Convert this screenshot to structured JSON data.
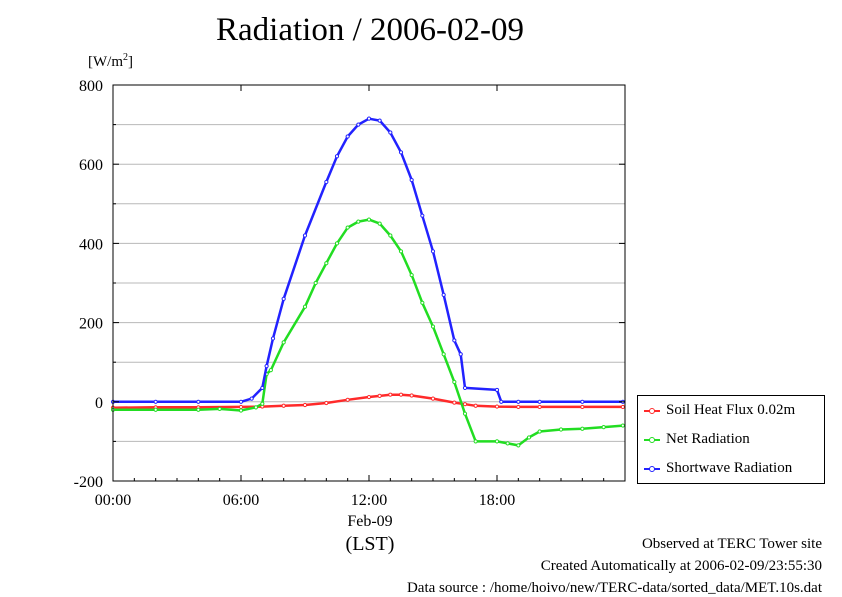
{
  "title": "Radiation / 2006-02-09",
  "unit_label": "[W/m",
  "unit_sup": "2",
  "unit_close": "]",
  "x_date_label": "Feb-09",
  "x_axis_label": "(LST)",
  "footer": {
    "line1": "Observed at TERC Tower site",
    "line2": "Created Automatically at 2006-02-09/23:55:30",
    "line3": "Data source : /home/hoivo/new/TERC-data/sorted_data/MET.10s.dat"
  },
  "legend": [
    {
      "label": "Soil Heat Flux 0.02m",
      "color": "#ff2a2a"
    },
    {
      "label": "Net Radiation",
      "color": "#22dd22"
    },
    {
      "label": "Shortwave Radiation",
      "color": "#2222ff"
    }
  ],
  "chart_data": {
    "type": "line",
    "title": "Radiation / 2006-02-09",
    "ylabel": "[W/m2]",
    "xlabel": "(LST)",
    "xlim": [
      0,
      24
    ],
    "ylim": [
      -200,
      800
    ],
    "x_ticks": [
      0,
      6,
      12,
      18
    ],
    "x_tick_labels": [
      "00:00",
      "06:00",
      "12:00",
      "18:00"
    ],
    "y_ticks": [
      -200,
      0,
      200,
      400,
      600,
      800
    ],
    "y_tick_labels": [
      "-200",
      "0",
      "200",
      "400",
      "600",
      "800"
    ],
    "grid": "horizontal",
    "legend_position": "right",
    "series": [
      {
        "name": "Soil Heat Flux 0.02m",
        "color": "#ff2a2a",
        "x": [
          0,
          2,
          4,
          6,
          7,
          8,
          9,
          10,
          11,
          12,
          12.5,
          13,
          13.5,
          14,
          15,
          16,
          16.5,
          17,
          18,
          19,
          20,
          22,
          23.9
        ],
        "y": [
          -15,
          -14,
          -14,
          -13,
          -12,
          -10,
          -8,
          -3,
          5,
          12,
          15,
          18,
          18,
          16,
          8,
          -2,
          -6,
          -10,
          -12,
          -13,
          -13,
          -13,
          -13
        ]
      },
      {
        "name": "Net Radiation",
        "color": "#22dd22",
        "x": [
          0,
          2,
          4,
          5,
          6,
          6.7,
          7,
          7.2,
          7.4,
          8,
          9,
          9.5,
          10,
          10.5,
          11,
          11.5,
          12,
          12.5,
          13,
          13.5,
          14,
          14.5,
          15,
          15.5,
          16,
          16.5,
          17,
          18,
          18.5,
          19,
          19.5,
          20,
          21,
          22,
          23,
          23.9
        ],
        "y": [
          -20,
          -20,
          -20,
          -18,
          -22,
          -14,
          -5,
          70,
          80,
          150,
          240,
          300,
          350,
          400,
          440,
          455,
          460,
          450,
          420,
          380,
          320,
          250,
          190,
          120,
          50,
          -30,
          -100,
          -100,
          -105,
          -110,
          -90,
          -75,
          -70,
          -68,
          -64,
          -60
        ]
      },
      {
        "name": "Shortwave Radiation",
        "color": "#2222ff",
        "x": [
          0,
          2,
          4,
          6,
          6.5,
          7,
          7.2,
          7.5,
          8,
          9,
          10,
          10.5,
          11,
          11.5,
          12,
          12.5,
          13,
          13.5,
          14,
          14.5,
          15,
          15.5,
          16,
          16.3,
          16.5,
          18,
          18.2,
          19,
          20,
          22,
          23.9
        ],
        "y": [
          0,
          0,
          0,
          0,
          8,
          35,
          90,
          160,
          260,
          420,
          555,
          620,
          670,
          700,
          715,
          710,
          680,
          630,
          560,
          470,
          380,
          270,
          155,
          120,
          35,
          30,
          0,
          0,
          0,
          0,
          0
        ]
      }
    ]
  }
}
